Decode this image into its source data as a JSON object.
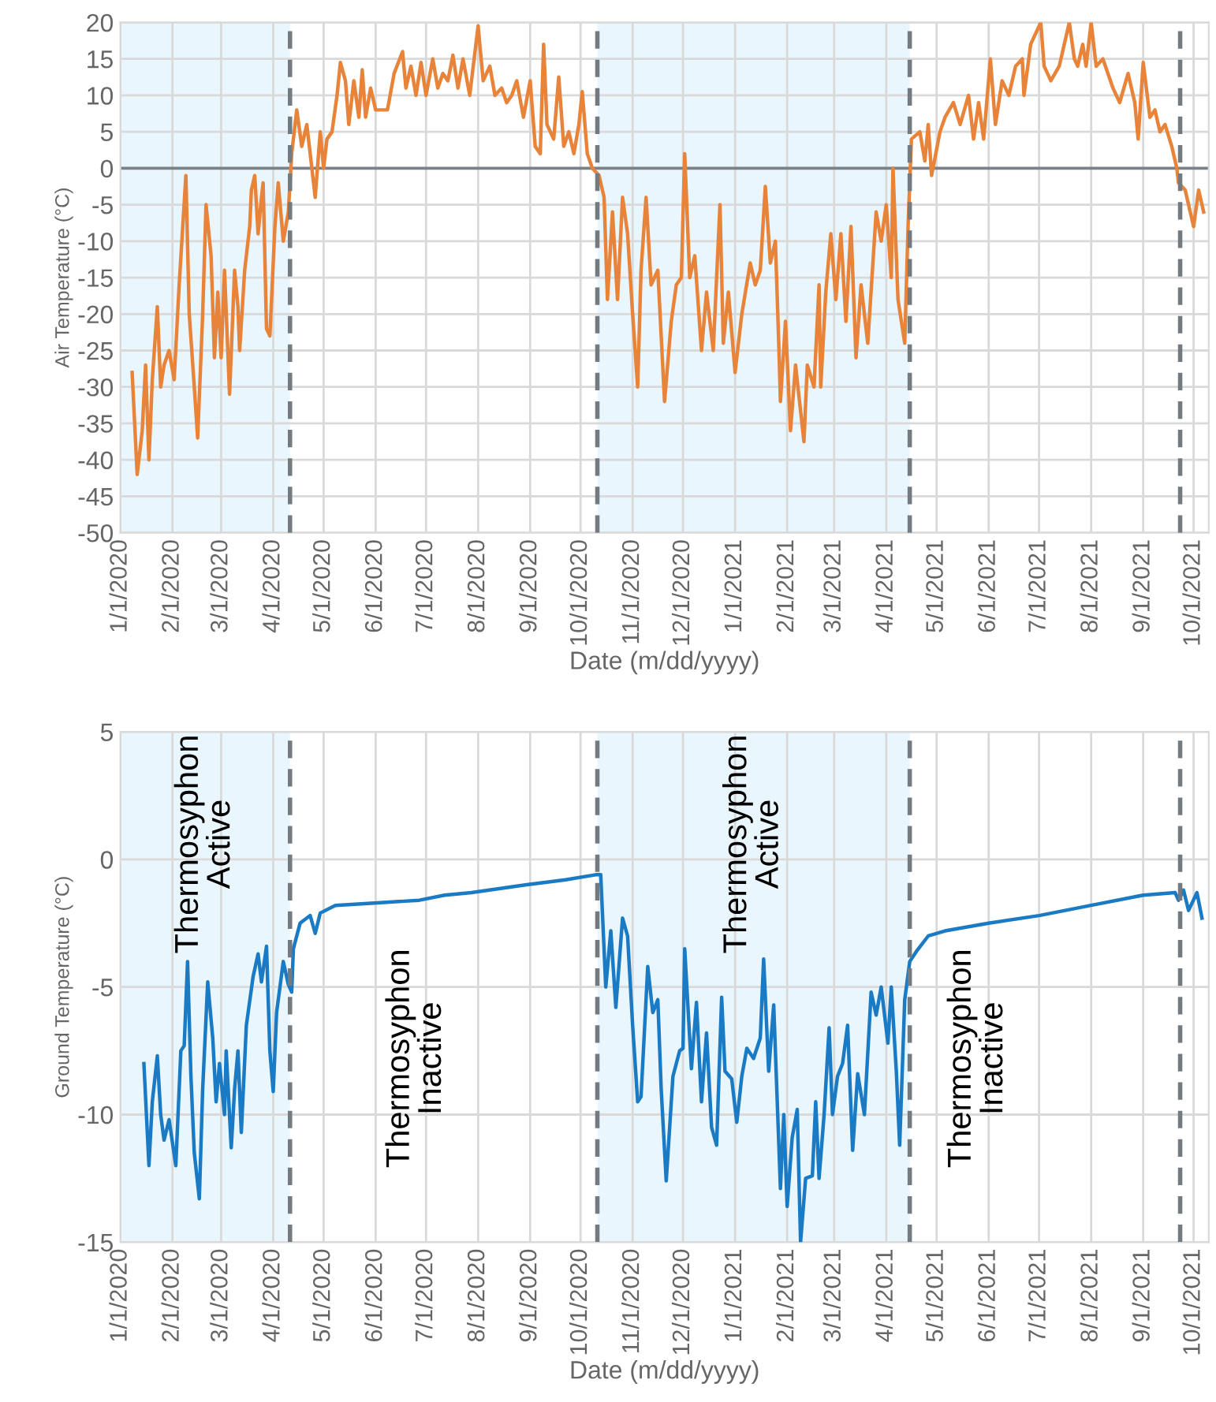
{
  "chart_data": [
    {
      "type": "line",
      "xlabel": "Date (m/dd/yyyy)",
      "ylabel": "Air Temperature (°C)",
      "xlim": [
        "2020-01-01",
        "2021-10-10"
      ],
      "ylim": [
        -50,
        20
      ],
      "yticks": [
        -50,
        -45,
        -40,
        -35,
        -30,
        -25,
        -20,
        -15,
        -10,
        -5,
        0,
        5,
        10,
        15,
        20
      ],
      "xticks": [
        {
          "value": "2020-01-01",
          "label": "1/1/2020"
        },
        {
          "value": "2020-02-01",
          "label": "2/1/2020"
        },
        {
          "value": "2020-03-01",
          "label": "3/1/2020"
        },
        {
          "value": "2020-04-01",
          "label": "4/1/2020"
        },
        {
          "value": "2020-05-01",
          "label": "5/1/2020"
        },
        {
          "value": "2020-06-01",
          "label": "6/1/2020"
        },
        {
          "value": "2020-07-01",
          "label": "7/1/2020"
        },
        {
          "value": "2020-08-01",
          "label": "8/1/2020"
        },
        {
          "value": "2020-09-01",
          "label": "9/1/2020"
        },
        {
          "value": "2020-10-01",
          "label": "10/1/2020"
        },
        {
          "value": "2020-11-01",
          "label": "11/1/2020"
        },
        {
          "value": "2020-12-01",
          "label": "12/1/2020"
        },
        {
          "value": "2021-01-01",
          "label": "1/1/2021"
        },
        {
          "value": "2021-02-01",
          "label": "2/1/2021"
        },
        {
          "value": "2021-03-01",
          "label": "3/1/2021"
        },
        {
          "value": "2021-04-01",
          "label": "4/1/2021"
        },
        {
          "value": "2021-05-01",
          "label": "5/1/2021"
        },
        {
          "value": "2021-06-01",
          "label": "6/1/2021"
        },
        {
          "value": "2021-07-01",
          "label": "7/1/2021"
        },
        {
          "value": "2021-08-01",
          "label": "8/1/2021"
        },
        {
          "value": "2021-09-01",
          "label": "9/1/2021"
        },
        {
          "value": "2021-10-01",
          "label": "10/1/2021"
        }
      ],
      "grid": true,
      "line_style": "solid",
      "marker": "none",
      "bands": [
        {
          "axis": "x",
          "from": "2020-01-01",
          "to": "2020-04-11",
          "color": "#eaf6fd"
        },
        {
          "axis": "x",
          "from": "2020-10-11",
          "to": "2021-04-15",
          "color": "#eaf6fd"
        }
      ],
      "ref_lines": [
        {
          "axis": "y",
          "value": 0,
          "color": "#7a8288",
          "line_style": "solid"
        },
        {
          "axis": "x",
          "value": "2020-04-11",
          "color": "#737b80",
          "line_style": "dashed"
        },
        {
          "axis": "x",
          "value": "2020-10-11",
          "color": "#737b80",
          "line_style": "dashed"
        },
        {
          "axis": "x",
          "value": "2021-04-15",
          "color": "#737b80",
          "line_style": "dashed"
        },
        {
          "axis": "x",
          "value": "2021-09-23",
          "color": "#737b80",
          "line_style": "dashed"
        }
      ],
      "series": [
        {
          "color": "#e8833a",
          "x": [
            "2020-01-08",
            "2020-01-11",
            "2020-01-14",
            "2020-01-16",
            "2020-01-18",
            "2020-01-20",
            "2020-01-23",
            "2020-01-25",
            "2020-01-27",
            "2020-01-30",
            "2020-02-02",
            "2020-02-05",
            "2020-02-09",
            "2020-02-11",
            "2020-02-14",
            "2020-02-16",
            "2020-02-19",
            "2020-02-21",
            "2020-02-24",
            "2020-02-26",
            "2020-02-28",
            "2020-03-01",
            "2020-03-03",
            "2020-03-06",
            "2020-03-09",
            "2020-03-11",
            "2020-03-12",
            "2020-03-15",
            "2020-03-18",
            "2020-03-19",
            "2020-03-21",
            "2020-03-23",
            "2020-03-25",
            "2020-03-26",
            "2020-03-28",
            "2020-03-30",
            "2020-04-02",
            "2020-04-04",
            "2020-04-07",
            "2020-04-10",
            "2020-04-12",
            "2020-04-15",
            "2020-04-18",
            "2020-04-21",
            "2020-04-23",
            "2020-04-26",
            "2020-04-29",
            "2020-05-01",
            "2020-05-03",
            "2020-05-06",
            "2020-05-09",
            "2020-05-11",
            "2020-05-14",
            "2020-05-16",
            "2020-05-19",
            "2020-05-22",
            "2020-05-24",
            "2020-05-26",
            "2020-05-29",
            "2020-06-01",
            "2020-06-05",
            "2020-06-08",
            "2020-06-12",
            "2020-06-17",
            "2020-06-19",
            "2020-06-22",
            "2020-06-25",
            "2020-06-28",
            "2020-07-01",
            "2020-07-05",
            "2020-07-08",
            "2020-07-11",
            "2020-07-14",
            "2020-07-17",
            "2020-07-20",
            "2020-07-23",
            "2020-07-27",
            "2020-08-01",
            "2020-08-04",
            "2020-08-08",
            "2020-08-11",
            "2020-08-15",
            "2020-08-18",
            "2020-08-21",
            "2020-08-24",
            "2020-08-28",
            "2020-09-01",
            "2020-09-04",
            "2020-09-07",
            "2020-09-09",
            "2020-09-11",
            "2020-09-15",
            "2020-09-18",
            "2020-09-21",
            "2020-09-24",
            "2020-09-27",
            "2020-09-30",
            "2020-10-02",
            "2020-10-05",
            "2020-10-08",
            "2020-10-12",
            "2020-10-15",
            "2020-10-17",
            "2020-10-20",
            "2020-10-23",
            "2020-10-26",
            "2020-10-29",
            "2020-11-01",
            "2020-11-04",
            "2020-11-06",
            "2020-11-09",
            "2020-11-12",
            "2020-11-16",
            "2020-11-18",
            "2020-11-20",
            "2020-11-24",
            "2020-11-27",
            "2020-11-30",
            "2020-12-02",
            "2020-12-05",
            "2020-12-08",
            "2020-12-12",
            "2020-12-15",
            "2020-12-19",
            "2020-12-23",
            "2020-12-25",
            "2020-12-28",
            "2021-01-01",
            "2021-01-05",
            "2021-01-10",
            "2021-01-13",
            "2021-01-16",
            "2021-01-19",
            "2021-01-22",
            "2021-01-25",
            "2021-01-27",
            "2021-01-28",
            "2021-01-31",
            "2021-02-03",
            "2021-02-06",
            "2021-02-11",
            "2021-02-13",
            "2021-02-17",
            "2021-02-20",
            "2021-02-21",
            "2021-02-24",
            "2021-02-27",
            "2021-03-02",
            "2021-03-05",
            "2021-03-08",
            "2021-03-11",
            "2021-03-14",
            "2021-03-17",
            "2021-03-21",
            "2021-03-26",
            "2021-03-29",
            "2021-04-01",
            "2021-04-04",
            "2021-04-05",
            "2021-04-08",
            "2021-04-12",
            "2021-04-14",
            "2021-04-16",
            "2021-04-21",
            "2021-04-24",
            "2021-04-26",
            "2021-04-28",
            "2021-05-03",
            "2021-05-06",
            "2021-05-11",
            "2021-05-15",
            "2021-05-20",
            "2021-05-23",
            "2021-05-26",
            "2021-05-29",
            "2021-06-02",
            "2021-06-05",
            "2021-06-09",
            "2021-06-13",
            "2021-06-17",
            "2021-06-21",
            "2021-06-22",
            "2021-06-26",
            "2021-07-02",
            "2021-07-04",
            "2021-07-08",
            "2021-07-13",
            "2021-07-16",
            "2021-07-19",
            "2021-07-22",
            "2021-07-24",
            "2021-07-27",
            "2021-07-29",
            "2021-08-01",
            "2021-08-04",
            "2021-08-08",
            "2021-08-14",
            "2021-08-18",
            "2021-08-23",
            "2021-08-27",
            "2021-08-29",
            "2021-09-01",
            "2021-09-05",
            "2021-09-08",
            "2021-09-11",
            "2021-09-14",
            "2021-09-18",
            "2021-09-21",
            "2021-09-22",
            "2021-09-26",
            "2021-10-01",
            "2021-10-04",
            "2021-10-07"
          ],
          "values": [
            -28,
            -42,
            -36,
            -27,
            -40,
            -29,
            -19,
            -30,
            -27,
            -25,
            -29,
            -16,
            -1,
            -20,
            -30,
            -37,
            -20,
            -5,
            -12,
            -26,
            -17,
            -26,
            -14,
            -31,
            -14,
            -19,
            -25,
            -14,
            -8,
            -3,
            -1,
            -9,
            -4,
            -2,
            -22,
            -23,
            -8,
            -2,
            -10,
            -6,
            2,
            8,
            3,
            6,
            2,
            -4,
            5,
            0,
            4,
            5,
            10,
            14.5,
            12,
            6,
            12,
            7,
            13.5,
            7,
            11,
            8,
            8,
            8,
            13,
            16,
            11,
            14,
            10,
            14.5,
            10,
            15,
            11,
            13,
            12,
            15.5,
            11,
            15,
            10,
            19.5,
            12,
            14,
            10,
            11,
            9,
            10,
            12,
            7,
            12,
            3,
            2,
            17,
            6,
            4,
            12.5,
            3,
            5,
            2,
            6,
            10.5,
            2,
            0,
            -1,
            -4,
            -18,
            -6,
            -18,
            -4,
            -9,
            -20,
            -30,
            -14,
            -4,
            -16,
            -14,
            -23,
            -32,
            -21,
            -16,
            -15,
            2,
            -15,
            -12,
            -25,
            -17,
            -25,
            -5,
            -24,
            -17,
            -28,
            -20,
            -13,
            -16,
            -14,
            -2.5,
            -13,
            -10,
            -24,
            -32,
            -21,
            -36,
            -27,
            -37.5,
            -27,
            -30,
            -16,
            -30,
            -17,
            -9,
            -18,
            -9,
            -21,
            -8,
            -26,
            -16,
            -24,
            -6,
            -10,
            -5,
            -15,
            0,
            -18,
            -24,
            -8,
            4,
            5,
            1,
            6,
            -1,
            5,
            7,
            9,
            6,
            10,
            4,
            9,
            4,
            15,
            6,
            12,
            10,
            14,
            15,
            10,
            17,
            20,
            14,
            12,
            14,
            17,
            20,
            15,
            14,
            17,
            14,
            20,
            14,
            15,
            11,
            9,
            13,
            9,
            4,
            14.5,
            7,
            8,
            5,
            6,
            3,
            0,
            -2,
            -3,
            -8,
            -3,
            -6
          ]
        }
      ]
    },
    {
      "type": "line",
      "xlabel": "Date (m/dd/yyyy)",
      "ylabel": "Ground Temperature (°C)",
      "xlim": [
        "2020-01-01",
        "2021-10-10"
      ],
      "ylim": [
        -15,
        5
      ],
      "yticks": [
        -15,
        -10,
        -5,
        0,
        5
      ],
      "xticks": [
        {
          "value": "2020-01-01",
          "label": "1/1/2020"
        },
        {
          "value": "2020-02-01",
          "label": "2/1/2020"
        },
        {
          "value": "2020-03-01",
          "label": "3/1/2020"
        },
        {
          "value": "2020-04-01",
          "label": "4/1/2020"
        },
        {
          "value": "2020-05-01",
          "label": "5/1/2020"
        },
        {
          "value": "2020-06-01",
          "label": "6/1/2020"
        },
        {
          "value": "2020-07-01",
          "label": "7/1/2020"
        },
        {
          "value": "2020-08-01",
          "label": "8/1/2020"
        },
        {
          "value": "2020-09-01",
          "label": "9/1/2020"
        },
        {
          "value": "2020-10-01",
          "label": "10/1/2020"
        },
        {
          "value": "2020-11-01",
          "label": "11/1/2020"
        },
        {
          "value": "2020-12-01",
          "label": "12/1/2020"
        },
        {
          "value": "2021-01-01",
          "label": "1/1/2021"
        },
        {
          "value": "2021-02-01",
          "label": "2/1/2021"
        },
        {
          "value": "2021-03-01",
          "label": "3/1/2021"
        },
        {
          "value": "2021-04-01",
          "label": "4/1/2021"
        },
        {
          "value": "2021-05-01",
          "label": "5/1/2021"
        },
        {
          "value": "2021-06-01",
          "label": "6/1/2021"
        },
        {
          "value": "2021-07-01",
          "label": "7/1/2021"
        },
        {
          "value": "2021-08-01",
          "label": "8/1/2021"
        },
        {
          "value": "2021-09-01",
          "label": "9/1/2021"
        },
        {
          "value": "2021-10-01",
          "label": "10/1/2021"
        }
      ],
      "grid": true,
      "line_style": "solid",
      "marker": "none",
      "bands": [
        {
          "axis": "x",
          "from": "2020-01-01",
          "to": "2020-04-11",
          "color": "#eaf6fd",
          "label": "Thermosyphon\nActive"
        },
        {
          "axis": "x",
          "from": "2020-10-11",
          "to": "2021-04-15",
          "color": "#eaf6fd",
          "label": "Thermosyphon\nActive"
        }
      ],
      "annotations": [
        "Thermosyphon\nInactive",
        "Thermosyphon\nInactive"
      ],
      "ref_lines": [
        {
          "axis": "x",
          "value": "2020-04-11",
          "color": "#737b80",
          "line_style": "dashed"
        },
        {
          "axis": "x",
          "value": "2020-10-11",
          "color": "#737b80",
          "line_style": "dashed"
        },
        {
          "axis": "x",
          "value": "2021-04-15",
          "color": "#737b80",
          "line_style": "dashed"
        },
        {
          "axis": "x",
          "value": "2021-09-23",
          "color": "#737b80",
          "line_style": "dashed"
        }
      ],
      "series": [
        {
          "color": "#1a7ac4",
          "x": [
            "2020-01-15",
            "2020-01-18",
            "2020-01-20",
            "2020-01-23",
            "2020-01-25",
            "2020-01-27",
            "2020-01-30",
            "2020-02-03",
            "2020-02-06",
            "2020-02-08",
            "2020-02-10",
            "2020-02-12",
            "2020-02-14",
            "2020-02-17",
            "2020-02-19",
            "2020-02-22",
            "2020-02-25",
            "2020-02-27",
            "2020-02-29",
            "2020-03-03",
            "2020-03-04",
            "2020-03-07",
            "2020-03-09",
            "2020-03-11",
            "2020-03-13",
            "2020-03-16",
            "2020-03-20",
            "2020-03-23",
            "2020-03-25",
            "2020-03-28",
            "2020-03-30",
            "2020-04-01",
            "2020-04-03",
            "2020-04-07",
            "2020-04-10",
            "2020-04-12",
            "2020-04-13",
            "2020-04-17",
            "2020-04-23",
            "2020-04-26",
            "2020-04-29",
            "2020-05-08",
            "2020-06-02",
            "2020-06-27",
            "2020-07-12",
            "2020-07-28",
            "2020-08-29",
            "2020-09-22",
            "2020-10-10",
            "2020-10-13",
            "2020-10-16",
            "2020-10-19",
            "2020-10-22",
            "2020-10-26",
            "2020-10-29",
            "2020-11-01",
            "2020-11-04",
            "2020-11-06",
            "2020-11-10",
            "2020-11-13",
            "2020-11-16",
            "2020-11-18",
            "2020-11-21",
            "2020-11-25",
            "2020-11-29",
            "2020-12-01",
            "2020-12-02",
            "2020-12-06",
            "2020-12-09",
            "2020-12-12",
            "2020-12-15",
            "2020-12-18",
            "2020-12-21",
            "2020-12-24",
            "2020-12-26",
            "2020-12-30",
            "2021-01-02",
            "2021-01-05",
            "2021-01-08",
            "2021-01-12",
            "2021-01-16",
            "2021-01-18",
            "2021-01-21",
            "2021-01-24",
            "2021-01-28",
            "2021-01-30",
            "2021-02-01",
            "2021-02-04",
            "2021-02-07",
            "2021-02-09",
            "2021-02-12",
            "2021-02-16",
            "2021-02-18",
            "2021-02-20",
            "2021-02-23",
            "2021-02-26",
            "2021-02-28",
            "2021-03-03",
            "2021-03-06",
            "2021-03-09",
            "2021-03-12",
            "2021-03-15",
            "2021-03-19",
            "2021-03-23",
            "2021-03-26",
            "2021-03-29",
            "2021-04-02",
            "2021-04-04",
            "2021-04-07",
            "2021-04-09",
            "2021-04-12",
            "2021-04-15",
            "2021-04-19",
            "2021-04-26",
            "2021-05-06",
            "2021-06-01",
            "2021-07-01",
            "2021-08-01",
            "2021-09-01",
            "2021-09-20",
            "2021-09-22",
            "2021-09-25",
            "2021-09-28",
            "2021-10-03",
            "2021-10-06"
          ],
          "values": [
            -8,
            -12,
            -9.5,
            -7.7,
            -10,
            -11,
            -10.2,
            -12,
            -7.5,
            -7.3,
            -4,
            -8.5,
            -11.5,
            -13.3,
            -9,
            -4.8,
            -7,
            -9.5,
            -8,
            -10,
            -7.5,
            -11.3,
            -9,
            -7.5,
            -10.7,
            -6.5,
            -4.6,
            -3.7,
            -4.8,
            -3.4,
            -7.5,
            -9.1,
            -6,
            -4,
            -4.9,
            -5.2,
            -3.5,
            -2.5,
            -2.2,
            -2.9,
            -2.1,
            -1.8,
            -1.7,
            -1.6,
            -1.4,
            -1.3,
            -1,
            -0.8,
            -0.6,
            -0.6,
            -5,
            -2.8,
            -5.8,
            -2.3,
            -3,
            -6.5,
            -9.5,
            -9.3,
            -4.2,
            -6,
            -5.5,
            -9,
            -12.6,
            -8.5,
            -7.5,
            -7.4,
            -3.5,
            -8.2,
            -5.6,
            -9.5,
            -6.8,
            -10.5,
            -11.2,
            -5.4,
            -8.3,
            -8.6,
            -10.3,
            -8.5,
            -7.4,
            -7.8,
            -7,
            -3.9,
            -8.3,
            -5.7,
            -12.9,
            -10,
            -13.6,
            -10.9,
            -9.8,
            -15,
            -12.5,
            -12.4,
            -9.5,
            -12.5,
            -10,
            -6.6,
            -10,
            -8.5,
            -8,
            -6.5,
            -11.4,
            -8.4,
            -10,
            -5.2,
            -6.1,
            -5,
            -7.2,
            -5,
            -8.3,
            -11.2,
            -5.5,
            -4,
            -3.6,
            -3,
            -2.8,
            -2.5,
            -2.2,
            -1.8,
            -1.4,
            -1.3,
            -1.6,
            -1.2,
            -2,
            -1.3,
            -2.3
          ]
        }
      ]
    }
  ]
}
